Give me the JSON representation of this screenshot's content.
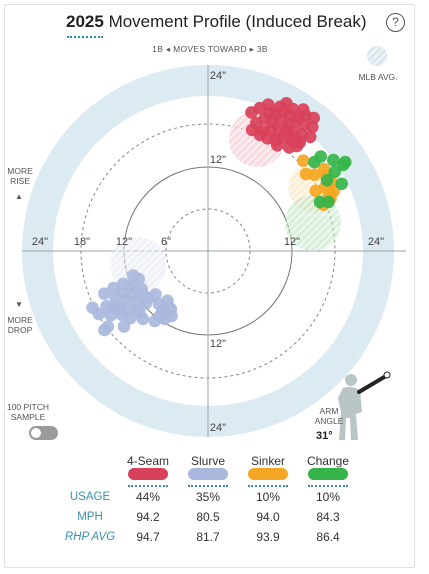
{
  "header": {
    "year": "2025",
    "title": "Movement Profile (Induced Break)",
    "help_icon": "question-circle-icon"
  },
  "direction": {
    "left": "1B",
    "text": "MOVES TOWARD",
    "right": "3B"
  },
  "labels": {
    "more_rise": [
      "MORE",
      "RISE"
    ],
    "more_drop": [
      "MORE",
      "DROP"
    ],
    "mlb_avg": "MLB AVG.",
    "sample": [
      "100 PITCH",
      "SAMPLE"
    ],
    "arm_angle": [
      "ARM",
      "ANGLE"
    ],
    "arm_angle_value": "31°"
  },
  "chart_data": {
    "type": "scatter",
    "title": "Movement Profile (Induced Break)",
    "axis_unit": "inches",
    "rings": [
      6,
      12,
      18,
      24
    ],
    "horizontal_tick_labels": [
      "24\"",
      "18\"",
      "12\"",
      "6\"",
      "12\"",
      "24\""
    ],
    "vertical_tick_labels": [
      "24\"",
      "12\"",
      "12\"",
      "24\""
    ],
    "xlim": [
      -28,
      28
    ],
    "ylim": [
      -28,
      28
    ],
    "series": [
      {
        "name": "4-Seam",
        "color": "#d8415a",
        "mlb_avg": {
          "x": 7,
          "y": 16,
          "r": 4
        },
        "points": [
          [
            6.2,
            19.8
          ],
          [
            7.4,
            20.4
          ],
          [
            8.6,
            20.9
          ],
          [
            9.6,
            19.6
          ],
          [
            10.7,
            19.9
          ],
          [
            11.7,
            19.4
          ],
          [
            12.8,
            19.1
          ],
          [
            13.9,
            19.4
          ],
          [
            15.1,
            19.0
          ],
          [
            6.9,
            18.3
          ],
          [
            8.1,
            18.9
          ],
          [
            9.2,
            18.4
          ],
          [
            10.4,
            18.6
          ],
          [
            11.5,
            18.1
          ],
          [
            12.6,
            18.5
          ],
          [
            13.7,
            18.0
          ],
          [
            14.9,
            17.7
          ],
          [
            7.9,
            17.1
          ],
          [
            9.0,
            17.4
          ],
          [
            10.1,
            17.0
          ],
          [
            11.2,
            17.3
          ],
          [
            12.3,
            16.9
          ],
          [
            13.4,
            16.6
          ],
          [
            14.6,
            16.3
          ],
          [
            8.5,
            16.1
          ],
          [
            9.7,
            15.8
          ],
          [
            10.8,
            16.2
          ],
          [
            12.0,
            15.7
          ],
          [
            13.1,
            15.5
          ],
          [
            7.4,
            16.6
          ],
          [
            11.2,
            21.1
          ],
          [
            9.9,
            15.1
          ],
          [
            12.7,
            15.0
          ],
          [
            11.6,
            14.8
          ],
          [
            8.9,
            19.7
          ],
          [
            10.3,
            20.6
          ],
          [
            13.6,
            20.2
          ],
          [
            12.1,
            20.3
          ],
          [
            6.3,
            17.3
          ],
          [
            11.7,
            16.4
          ]
        ]
      },
      {
        "name": "Slurve",
        "color": "#a9b8dc",
        "mlb_avg": {
          "x": -10,
          "y": -2,
          "r": 4
        },
        "points": [
          [
            -10.7,
            -3.5
          ],
          [
            -9.9,
            -4.0
          ],
          [
            -12.1,
            -4.7
          ],
          [
            -10.8,
            -5.0
          ],
          [
            -9.5,
            -5.4
          ],
          [
            -13.5,
            -5.3
          ],
          [
            -12.2,
            -6.0
          ],
          [
            -10.9,
            -6.2
          ],
          [
            -9.2,
            -6.3
          ],
          [
            -7.5,
            -6.2
          ],
          [
            -14.8,
            -6.1
          ],
          [
            -13.2,
            -6.7
          ],
          [
            -11.8,
            -7.1
          ],
          [
            -10.3,
            -7.2
          ],
          [
            -8.9,
            -7.5
          ],
          [
            -7.0,
            -7.6
          ],
          [
            -5.8,
            -7.1
          ],
          [
            -16.5,
            -8.1
          ],
          [
            -14.5,
            -7.9
          ],
          [
            -13.4,
            -8.0
          ],
          [
            -11.6,
            -8.3
          ],
          [
            -10.1,
            -8.5
          ],
          [
            -6.5,
            -8.5
          ],
          [
            -5.3,
            -8.3
          ],
          [
            -15.6,
            -9.0
          ],
          [
            -13.9,
            -9.2
          ],
          [
            -12.3,
            -9.1
          ],
          [
            -9.3,
            -9.7
          ],
          [
            -6.2,
            -9.7
          ],
          [
            -5.2,
            -9.3
          ],
          [
            -14.3,
            -10.8
          ],
          [
            -12.0,
            -10.8
          ],
          [
            -7.6,
            -10.0
          ],
          [
            -6.9,
            -9.3
          ],
          [
            -8.5,
            -6.7
          ],
          [
            -11.1,
            -9.6
          ],
          [
            -9.8,
            -8.8
          ],
          [
            -14.8,
            -11.3
          ],
          [
            -5.6,
            -8.0
          ],
          [
            -12.7,
            -8.3
          ]
        ]
      },
      {
        "name": "Sinker",
        "color": "#f5a622",
        "mlb_avg": {
          "x": 15,
          "y": 9,
          "r": 3.5
        },
        "points": [
          [
            13.6,
            12.9
          ],
          [
            14.0,
            11.0
          ],
          [
            15.2,
            10.9
          ],
          [
            16.6,
            11.7
          ],
          [
            16.9,
            10.7
          ],
          [
            17.6,
            9.9
          ],
          [
            18.0,
            8.6
          ],
          [
            15.4,
            8.6
          ],
          [
            16.7,
            9.1
          ],
          [
            16.5,
            6.6
          ],
          [
            17.5,
            7.5
          ],
          [
            17.3,
            8.2
          ]
        ]
      },
      {
        "name": "Change",
        "color": "#35b44a",
        "mlb_avg": {
          "x": 15,
          "y": 4,
          "r": 4
        },
        "points": [
          [
            16.1,
            13.5
          ],
          [
            15.2,
            12.7
          ],
          [
            17.9,
            13.0
          ],
          [
            19.3,
            12.3
          ],
          [
            18.1,
            11.3
          ],
          [
            19.1,
            9.6
          ],
          [
            17.2,
            7.0
          ],
          [
            16.0,
            7.0
          ],
          [
            17.0,
            10.1
          ],
          [
            19.6,
            12.7
          ]
        ]
      }
    ]
  },
  "stats": {
    "columns": [
      "4-Seam",
      "Slurve",
      "Sinker",
      "Change"
    ],
    "colors": [
      "#d8415a",
      "#a9b8dc",
      "#f5a622",
      "#35b44a"
    ],
    "rows": [
      {
        "label": "USAGE",
        "values": [
          "44%",
          "35%",
          "10%",
          "10%"
        ]
      },
      {
        "label": "MPH",
        "values": [
          "94.2",
          "80.5",
          "94.0",
          "84.3"
        ]
      },
      {
        "label": "RHP AVG",
        "values": [
          "94.7",
          "81.7",
          "93.9",
          "86.4"
        ]
      }
    ]
  }
}
